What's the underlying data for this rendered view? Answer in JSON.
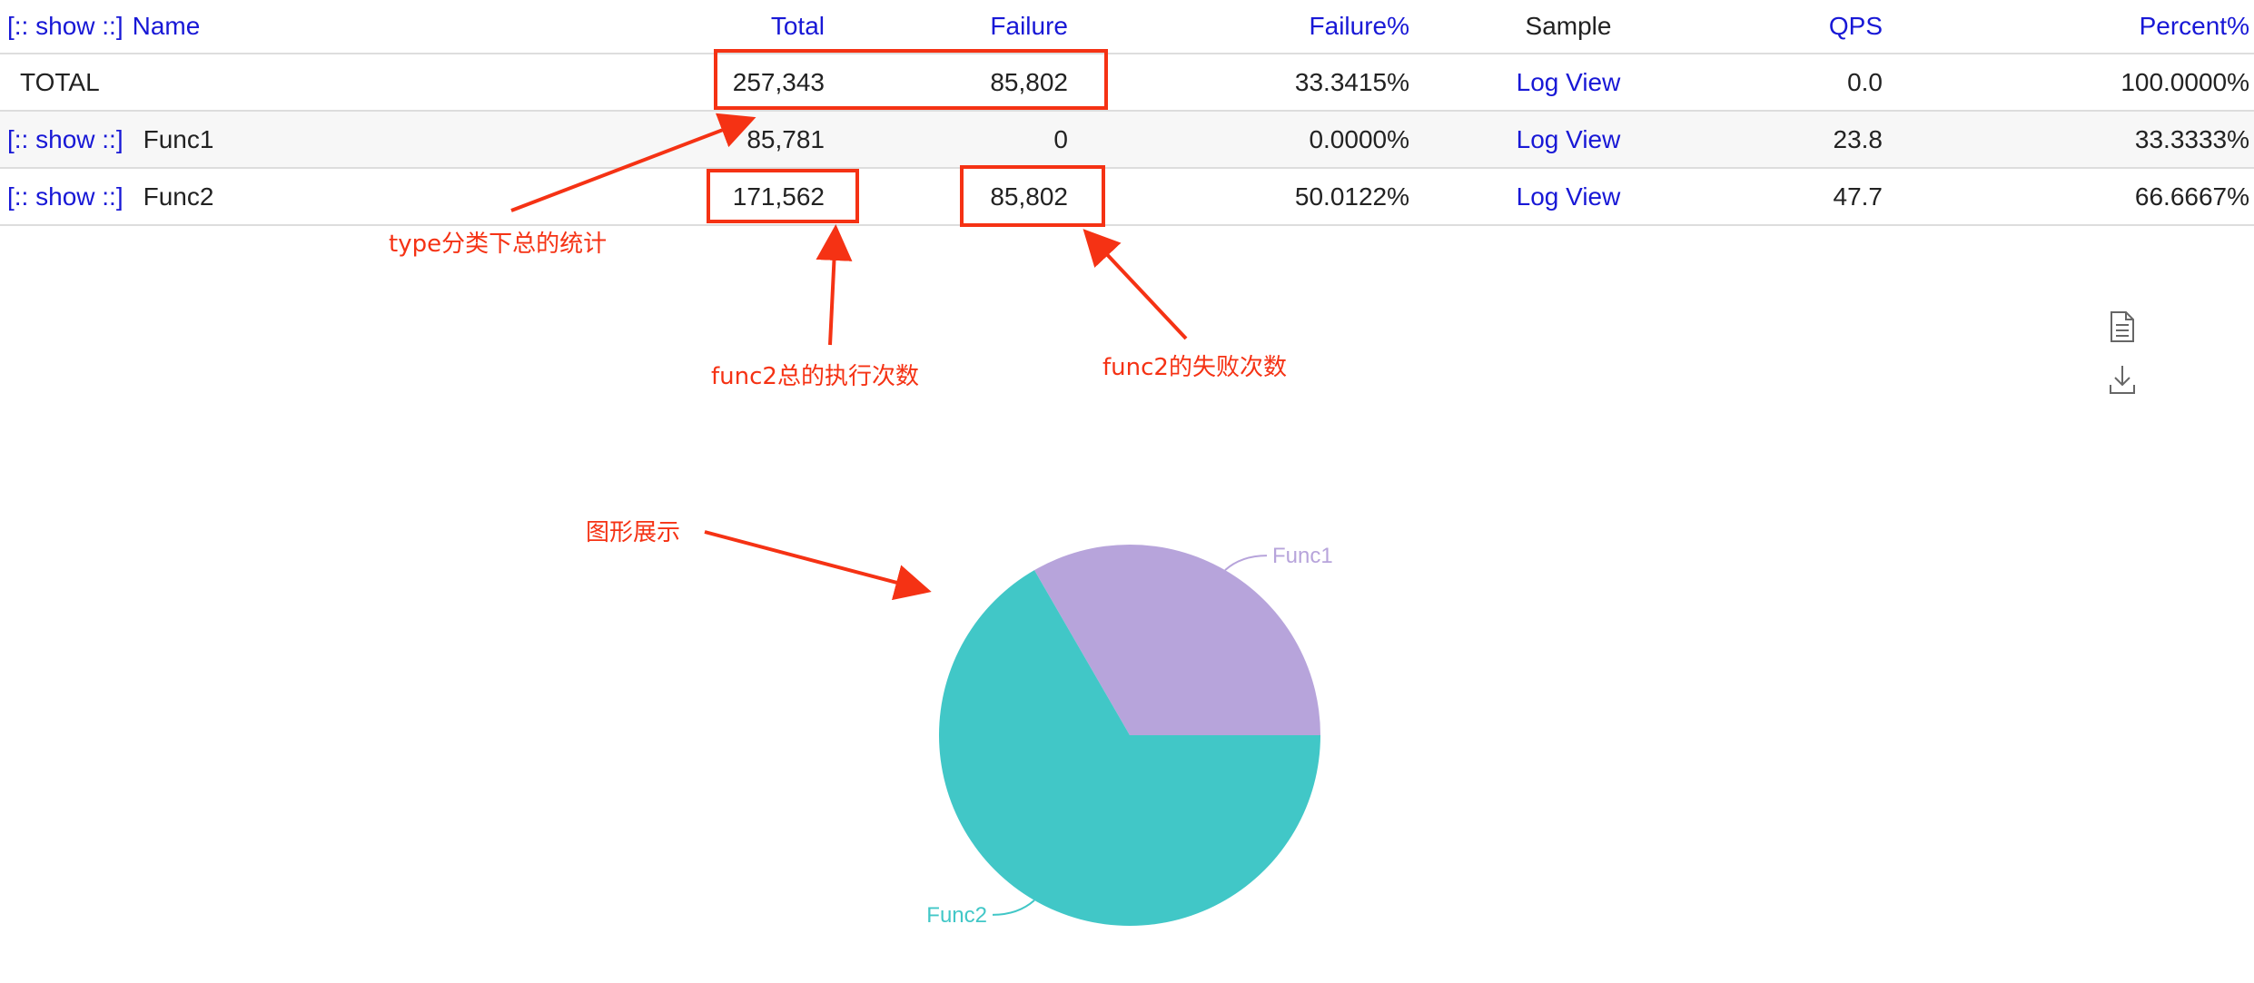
{
  "table": {
    "header": {
      "show_toggle": "[:: show ::]",
      "name": "Name",
      "total": "Total",
      "failure": "Failure",
      "failure_pct": "Failure%",
      "sample": "Sample",
      "qps": "QPS",
      "percent": "Percent%"
    },
    "rows": [
      {
        "show": "",
        "name": "TOTAL",
        "total": "257,343",
        "failure": "85,802",
        "failure_pct": "33.3415%",
        "sample": "Log View",
        "qps": "0.0",
        "percent": "100.0000%"
      },
      {
        "show": "[:: show ::]",
        "name": "Func1",
        "total": "85,781",
        "failure": "0",
        "failure_pct": "0.0000%",
        "sample": "Log View",
        "qps": "23.8",
        "percent": "33.3333%"
      },
      {
        "show": "[:: show ::]",
        "name": "Func2",
        "total": "171,562",
        "failure": "85,802",
        "failure_pct": "50.0122%",
        "sample": "Log View",
        "qps": "47.7",
        "percent": "66.6667%"
      }
    ]
  },
  "annotations": {
    "type_total": "type分类下总的统计",
    "func2_total": "func2总的执行次数",
    "func2_failure": "func2的失败次数",
    "chart": "图形展示"
  },
  "icons": {
    "document": "document-icon",
    "download": "download-icon"
  },
  "colors": {
    "link": "#1818d6",
    "annotation": "#f53214",
    "func1": "#b7a4db",
    "func2": "#41c7c7"
  },
  "chart_data": {
    "type": "pie",
    "categories": [
      "Func1",
      "Func2"
    ],
    "values": [
      85781,
      171562
    ],
    "colors": [
      "#b7a4db",
      "#41c7c7"
    ],
    "title": ""
  }
}
